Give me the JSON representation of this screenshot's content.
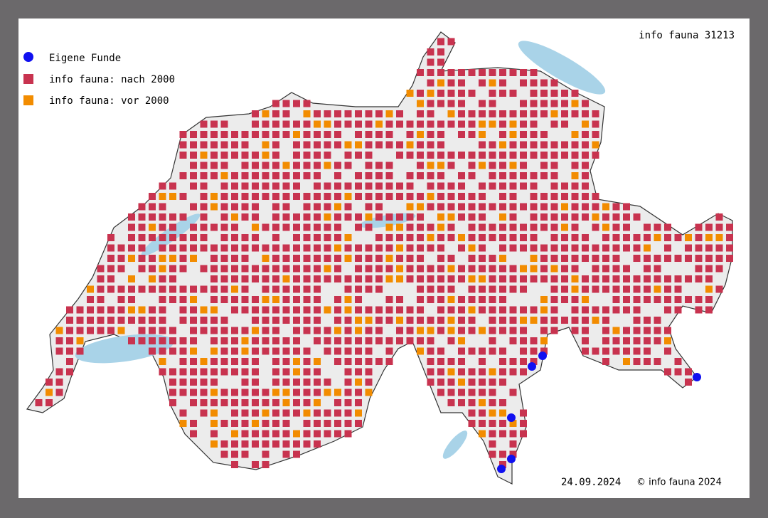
{
  "header": {
    "title": "info fauna 31213"
  },
  "legend": [
    {
      "label": "Eigene Funde",
      "color": "#1010f0"
    },
    {
      "label": "info fauna: nach 2000",
      "color": "#c8334f"
    },
    {
      "label": "info fauna: vor 2000",
      "color": "#f28c00"
    }
  ],
  "footer": {
    "date": "24.09.2024",
    "copyright": "© info fauna 2024"
  }
}
